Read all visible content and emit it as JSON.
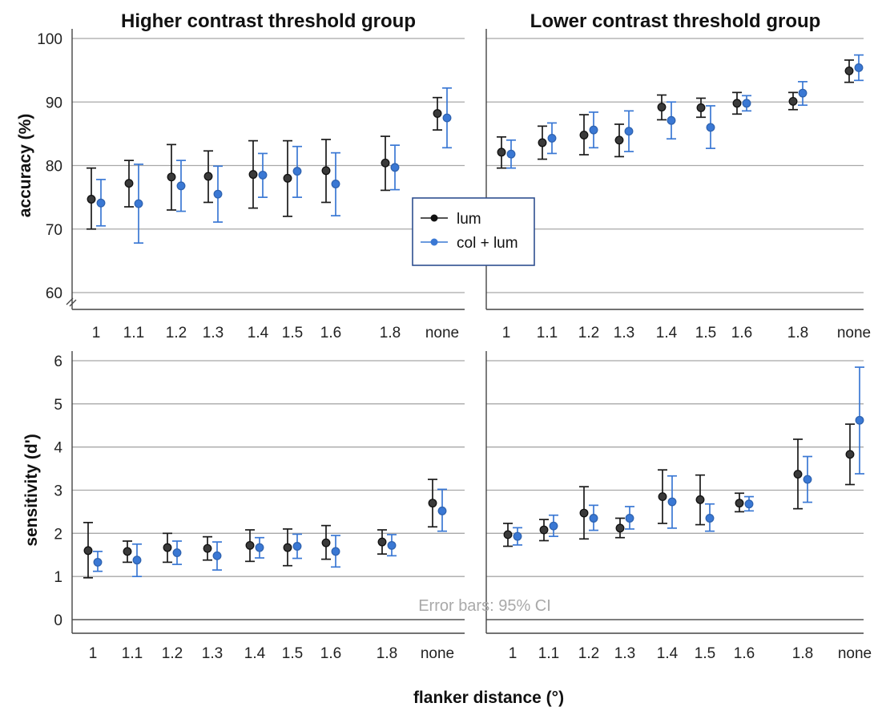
{
  "figure": {
    "xlabel": "flanker distance (°)",
    "note": "Error bars: 95% CI",
    "legend": [
      {
        "label": "lum",
        "color": "#1a1a1a"
      },
      {
        "label": "col + lum",
        "color": "#3a78d4"
      }
    ]
  },
  "chart_data": [
    {
      "type": "scatter",
      "panel": "accuracy-higher",
      "title": "Higher contrast threshold group",
      "ylabel": "accuracy (%)",
      "ylim": [
        60,
        100
      ],
      "yticks": [
        60,
        70,
        80,
        90,
        100
      ],
      "categories": [
        "1",
        "1.1",
        "1.2",
        "1.3",
        "1.4",
        "1.5",
        "1.6",
        "1.8",
        "none"
      ],
      "grid": true,
      "series": [
        {
          "name": "lum",
          "values": [
            74.7,
            77.2,
            78.2,
            78.3,
            78.6,
            78.0,
            79.2,
            80.4,
            88.2
          ],
          "ci_low": [
            70.0,
            73.5,
            73.0,
            74.2,
            73.3,
            72.0,
            74.2,
            76.1,
            85.6
          ],
          "ci_high": [
            79.6,
            80.8,
            83.3,
            82.3,
            83.9,
            83.9,
            84.1,
            84.6,
            90.7
          ]
        },
        {
          "name": "col + lum",
          "values": [
            74.1,
            74.0,
            76.8,
            75.5,
            78.5,
            79.1,
            77.1,
            79.7,
            87.5
          ],
          "ci_low": [
            70.5,
            67.8,
            72.8,
            71.1,
            75.0,
            75.0,
            72.1,
            76.2,
            82.8
          ],
          "ci_high": [
            77.8,
            80.2,
            80.8,
            79.9,
            81.9,
            83.0,
            82.0,
            83.2,
            92.2
          ]
        }
      ]
    },
    {
      "type": "scatter",
      "panel": "accuracy-lower",
      "title": "Lower contrast threshold group",
      "ylabel": "",
      "ylim": [
        60,
        100
      ],
      "yticks": [
        60,
        70,
        80,
        90,
        100
      ],
      "categories": [
        "1",
        "1.1",
        "1.2",
        "1.3",
        "1.4",
        "1.5",
        "1.6",
        "1.8",
        "none"
      ],
      "grid": true,
      "series": [
        {
          "name": "lum",
          "values": [
            82.1,
            83.6,
            84.8,
            84.0,
            89.2,
            89.1,
            89.8,
            90.1,
            94.9
          ],
          "ci_low": [
            79.6,
            81.0,
            81.7,
            81.4,
            87.2,
            87.6,
            88.1,
            88.8,
            93.1
          ],
          "ci_high": [
            84.5,
            86.2,
            88.0,
            86.5,
            91.1,
            90.6,
            91.5,
            91.5,
            96.6
          ]
        },
        {
          "name": "col + lum",
          "values": [
            81.8,
            84.3,
            85.6,
            85.4,
            87.1,
            86.0,
            89.8,
            91.4,
            95.4
          ],
          "ci_low": [
            79.6,
            81.9,
            82.8,
            82.2,
            84.2,
            82.7,
            88.6,
            89.5,
            93.4
          ],
          "ci_high": [
            84.0,
            86.7,
            88.4,
            88.6,
            90.0,
            89.4,
            91.0,
            93.2,
            97.4
          ]
        }
      ]
    },
    {
      "type": "scatter",
      "panel": "sensitivity-higher",
      "title": "",
      "ylabel": "sensitivity (d')",
      "ylim": [
        0,
        6
      ],
      "yticks": [
        0,
        1,
        2,
        3,
        4,
        5,
        6
      ],
      "categories": [
        "1",
        "1.1",
        "1.2",
        "1.3",
        "1.4",
        "1.5",
        "1.6",
        "1.8",
        "none"
      ],
      "grid": true,
      "series": [
        {
          "name": "lum",
          "values": [
            1.6,
            1.58,
            1.67,
            1.65,
            1.72,
            1.67,
            1.78,
            1.8,
            2.7
          ],
          "ci_low": [
            0.97,
            1.33,
            1.33,
            1.38,
            1.35,
            1.25,
            1.4,
            1.52,
            2.15
          ],
          "ci_high": [
            2.25,
            1.82,
            2.0,
            1.92,
            2.08,
            2.1,
            2.18,
            2.08,
            3.25
          ]
        },
        {
          "name": "col + lum",
          "values": [
            1.33,
            1.38,
            1.55,
            1.48,
            1.67,
            1.7,
            1.58,
            1.72,
            2.52
          ],
          "ci_low": [
            1.12,
            1.0,
            1.28,
            1.15,
            1.43,
            1.42,
            1.22,
            1.48,
            2.05
          ],
          "ci_high": [
            1.58,
            1.75,
            1.82,
            1.8,
            1.9,
            1.98,
            1.95,
            1.97,
            3.02
          ]
        }
      ]
    },
    {
      "type": "scatter",
      "panel": "sensitivity-lower",
      "title": "",
      "ylabel": "",
      "ylim": [
        0,
        6
      ],
      "yticks": [
        0,
        1,
        2,
        3,
        4,
        5,
        6
      ],
      "categories": [
        "1",
        "1.1",
        "1.2",
        "1.3",
        "1.4",
        "1.5",
        "1.6",
        "1.8",
        "none"
      ],
      "grid": true,
      "series": [
        {
          "name": "lum",
          "values": [
            1.97,
            2.08,
            2.47,
            2.12,
            2.85,
            2.78,
            2.7,
            3.37,
            3.83
          ],
          "ci_low": [
            1.7,
            1.83,
            1.87,
            1.9,
            2.23,
            2.2,
            2.5,
            2.57,
            3.13
          ],
          "ci_high": [
            2.23,
            2.32,
            3.08,
            2.35,
            3.47,
            3.35,
            2.93,
            4.18,
            4.53
          ]
        },
        {
          "name": "col + lum",
          "values": [
            1.93,
            2.17,
            2.35,
            2.35,
            2.73,
            2.35,
            2.68,
            3.25,
            4.62
          ],
          "ci_low": [
            1.73,
            1.93,
            2.07,
            2.1,
            2.12,
            2.05,
            2.52,
            2.72,
            3.38
          ],
          "ci_high": [
            2.13,
            2.42,
            2.65,
            2.62,
            3.33,
            2.68,
            2.85,
            3.78,
            5.85
          ]
        }
      ]
    }
  ]
}
